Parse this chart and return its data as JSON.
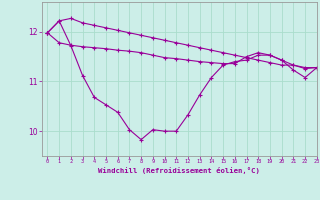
{
  "background_color": "#cceee8",
  "grid_color": "#aaddcc",
  "line_color": "#990099",
  "x_values": [
    0,
    1,
    2,
    3,
    4,
    5,
    6,
    7,
    8,
    9,
    10,
    11,
    12,
    13,
    14,
    15,
    16,
    17,
    18,
    19,
    20,
    21,
    22,
    23
  ],
  "line1": [
    11.98,
    12.22,
    12.27,
    12.18,
    12.13,
    12.08,
    12.03,
    11.98,
    11.93,
    11.88,
    11.83,
    11.78,
    11.73,
    11.68,
    11.63,
    11.58,
    11.53,
    11.48,
    11.43,
    11.38,
    11.33,
    11.33,
    11.28,
    11.28
  ],
  "line2": [
    11.98,
    11.78,
    11.73,
    11.7,
    11.68,
    11.66,
    11.63,
    11.61,
    11.58,
    11.53,
    11.48,
    11.46,
    11.43,
    11.4,
    11.38,
    11.36,
    11.36,
    11.5,
    11.58,
    11.53,
    11.43,
    11.33,
    11.26,
    11.28
  ],
  "windchill": [
    11.98,
    12.22,
    11.72,
    11.12,
    10.68,
    10.53,
    10.38,
    10.03,
    9.83,
    10.03,
    10.0,
    10.0,
    10.33,
    10.73,
    11.08,
    11.33,
    11.4,
    11.43,
    11.53,
    11.53,
    11.43,
    11.23,
    11.08,
    11.28
  ],
  "xlabel": "Windchill (Refroidissement éolien,°C)",
  "ylim": [
    9.5,
    12.6
  ],
  "xlim": [
    -0.5,
    23
  ],
  "yticks": [
    10,
    11,
    12
  ],
  "xticks": [
    0,
    1,
    2,
    3,
    4,
    5,
    6,
    7,
    8,
    9,
    10,
    11,
    12,
    13,
    14,
    15,
    16,
    17,
    18,
    19,
    20,
    21,
    22,
    23
  ]
}
